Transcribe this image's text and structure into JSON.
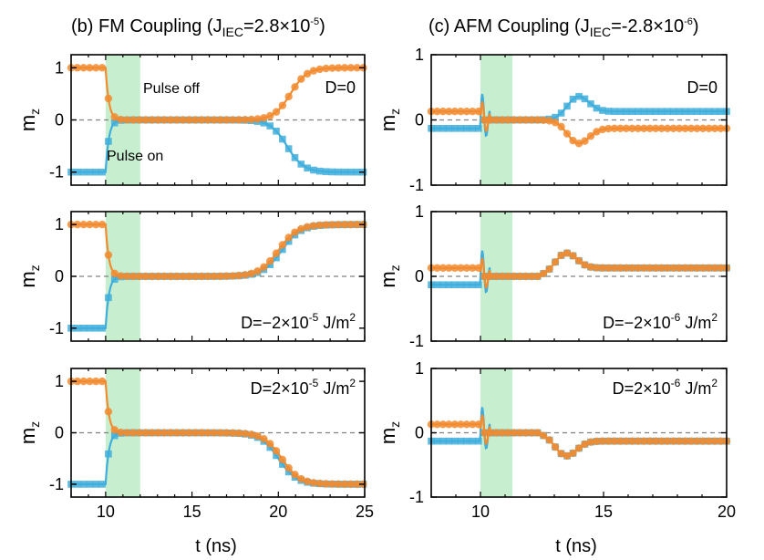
{
  "figure": {
    "panel_b": {
      "title_main": "(b) FM Coupling (J",
      "title_sub": "IEC",
      "title_eq": "=2.8×10",
      "title_exp": "-5",
      "title_close": ")"
    },
    "panel_c": {
      "title_main": "(c) AFM Coupling (J",
      "title_sub": "IEC",
      "title_eq": "=-2.8×10",
      "title_exp": "-6",
      "title_close": ")"
    },
    "ylabel_main": "m",
    "ylabel_sub": "z",
    "xlabel": "t (ns)",
    "annotations": {
      "pulse_off": "Pulse off",
      "pulse_on": "Pulse on"
    },
    "colors": {
      "orange": "#F28A2E",
      "blue": "#3FAEDC",
      "pulse_band": "#c7efcf",
      "zero_line": "#808080"
    }
  },
  "chart_data": [
    {
      "type": "line",
      "panel": "b-top",
      "xlim": [
        8,
        25
      ],
      "ylim": [
        -1.25,
        1.25
      ],
      "yticks": [
        -1,
        0,
        1
      ],
      "xticks": [
        10,
        15,
        20,
        25
      ],
      "pulse": [
        10,
        12
      ],
      "label": "D=0",
      "label_sup": "",
      "label_tail": "",
      "orange": {
        "start": 1,
        "final": 1,
        "mid": 20.7,
        "w": 0.48
      },
      "blue": {
        "start": -1,
        "final": -1,
        "mid": 20.5,
        "w": 0.48
      }
    },
    {
      "type": "line",
      "panel": "b-mid",
      "xlim": [
        8,
        25
      ],
      "ylim": [
        -1.25,
        1.25
      ],
      "yticks": [
        -1,
        0,
        1
      ],
      "xticks": [
        10,
        15,
        20,
        25
      ],
      "pulse": [
        10,
        12
      ],
      "label": "D=−2×10",
      "label_sup": "-5",
      "label_tail": " J/m",
      "orange": {
        "start": 1,
        "final": 1,
        "mid": 20.0,
        "w": 0.55
      },
      "blue": {
        "start": -1,
        "final": 1,
        "mid": 20.2,
        "w": 0.55
      }
    },
    {
      "type": "line",
      "panel": "b-bot",
      "xlim": [
        8,
        25
      ],
      "ylim": [
        -1.25,
        1.25
      ],
      "yticks": [
        -1,
        0,
        1
      ],
      "xticks": [
        10,
        15,
        20,
        25
      ],
      "pulse": [
        10,
        12
      ],
      "label": "D=2×10",
      "label_sup": "-5",
      "label_tail": " J/m",
      "orange": {
        "start": 1,
        "final": -1,
        "mid": 20.2,
        "w": 0.52
      },
      "blue": {
        "start": -1,
        "final": -1,
        "mid": 20.0,
        "w": 0.52
      }
    },
    {
      "type": "line",
      "panel": "c-top",
      "xlim": [
        8,
        20
      ],
      "ylim": [
        -1,
        1
      ],
      "yticks": [
        -1,
        0,
        1
      ],
      "xticks": [
        10,
        15,
        20
      ],
      "pulse": [
        10,
        11.3
      ],
      "label": "D=0",
      "label_sup": "",
      "label_tail": "",
      "orange": {
        "start": 0.13,
        "final": -0.13,
        "bump_t": 14.0,
        "bump_a": -0.36
      },
      "blue": {
        "start": -0.13,
        "final": 0.13,
        "bump_t": 14.0,
        "bump_a": 0.36
      }
    },
    {
      "type": "line",
      "panel": "c-mid",
      "xlim": [
        8,
        20
      ],
      "ylim": [
        -1,
        1
      ],
      "yticks": [
        -1,
        0,
        1
      ],
      "xticks": [
        10,
        15,
        20
      ],
      "pulse": [
        10,
        11.3
      ],
      "label": "D=−2×10",
      "label_sup": "-6",
      "label_tail": " J/m",
      "orange": {
        "start": 0.13,
        "final": 0.13,
        "bump_t": 13.5,
        "bump_a": 0.36
      },
      "blue": {
        "start": -0.13,
        "final": 0.13,
        "bump_t": 13.5,
        "bump_a": 0.36
      }
    },
    {
      "type": "line",
      "panel": "c-bot",
      "xlim": [
        8,
        20
      ],
      "ylim": [
        -1,
        1
      ],
      "yticks": [
        -1,
        0,
        1
      ],
      "xticks": [
        10,
        15,
        20
      ],
      "pulse": [
        10,
        11.3
      ],
      "label": "D=2×10",
      "label_sup": "-6",
      "label_tail": " J/m",
      "orange": {
        "start": 0.13,
        "final": -0.13,
        "bump_t": 13.5,
        "bump_a": -0.36
      },
      "blue": {
        "start": -0.13,
        "final": -0.13,
        "bump_t": 13.5,
        "bump_a": -0.36
      }
    }
  ]
}
